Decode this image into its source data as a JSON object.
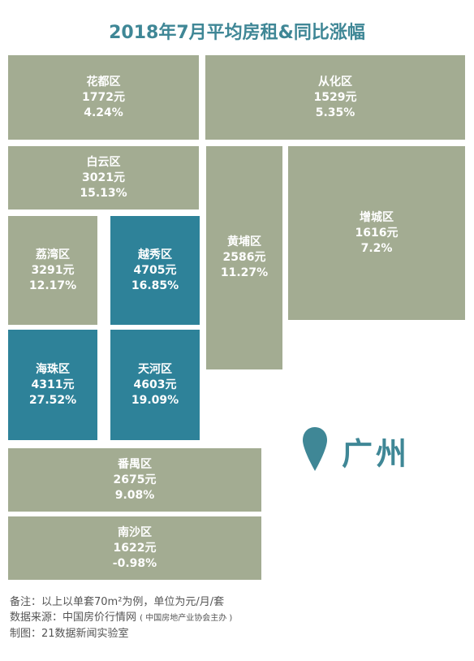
{
  "title": "2018年7月平均房租&同比涨幅",
  "city": "广州",
  "colors": {
    "normal": "#a3ac92",
    "highlight": "#2e8299",
    "title": "#3f8796"
  },
  "chart_data": {
    "type": "treemap",
    "title": "2018年7月平均房租&同比涨幅",
    "districts": [
      {
        "name": "花都区",
        "rent": "1772元",
        "change": "4.24%",
        "rent_value": 1772,
        "change_value": 4.24,
        "highlight": false
      },
      {
        "name": "从化区",
        "rent": "1529元",
        "change": "5.35%",
        "rent_value": 1529,
        "change_value": 5.35,
        "highlight": false
      },
      {
        "name": "白云区",
        "rent": "3021元",
        "change": "15.13%",
        "rent_value": 3021,
        "change_value": 15.13,
        "highlight": false
      },
      {
        "name": "黄埔区",
        "rent": "2586元",
        "change": "11.27%",
        "rent_value": 2586,
        "change_value": 11.27,
        "highlight": false
      },
      {
        "name": "增城区",
        "rent": "1616元",
        "change": "7.2%",
        "rent_value": 1616,
        "change_value": 7.2,
        "highlight": false
      },
      {
        "name": "荔湾区",
        "rent": "3291元",
        "change": "12.17%",
        "rent_value": 3291,
        "change_value": 12.17,
        "highlight": false
      },
      {
        "name": "越秀区",
        "rent": "4705元",
        "change": "16.85%",
        "rent_value": 4705,
        "change_value": 16.85,
        "highlight": true
      },
      {
        "name": "海珠区",
        "rent": "4311元",
        "change": "27.52%",
        "rent_value": 4311,
        "change_value": 27.52,
        "highlight": true
      },
      {
        "name": "天河区",
        "rent": "4603元",
        "change": "19.09%",
        "rent_value": 4603,
        "change_value": 19.09,
        "highlight": true
      },
      {
        "name": "番禺区",
        "rent": "2675元",
        "change": "9.08%",
        "rent_value": 2675,
        "change_value": 9.08,
        "highlight": false
      },
      {
        "name": "南沙区",
        "rent": "1622元",
        "change": "-0.98%",
        "rent_value": 1622,
        "change_value": -0.98,
        "highlight": false
      }
    ]
  },
  "notes": {
    "line1": "备注：以上以单套70m²为例，单位为元/月/套",
    "line2": "数据来源：中国房价行情网",
    "line2_small": "( 中国房地产业协会主办 )",
    "line3": "制图：21数据新闻实验室"
  }
}
